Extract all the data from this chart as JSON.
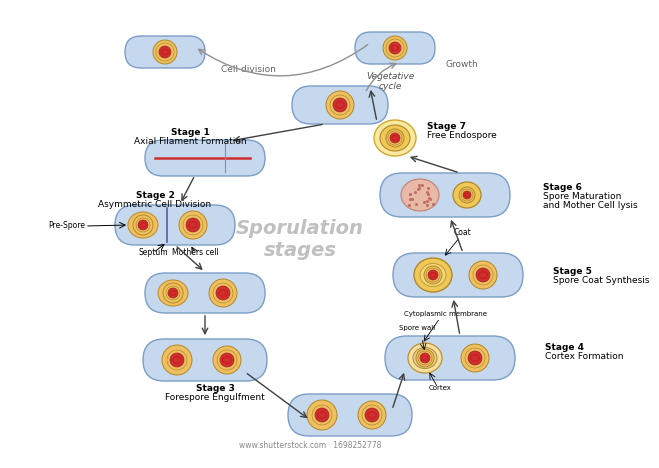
{
  "title": "Sporulation\nstages",
  "title_color": "#c0c0c0",
  "title_fontsize": 14,
  "background_color": "#ffffff",
  "cell_body_color": "#c5d8ee",
  "cell_border_color": "#7a9ec8",
  "nucleus_outer_color": "#f0c060",
  "nucleus_inner_color": "#cc3030",
  "filament_color": "#cc3030",
  "arrow_color": "#404040",
  "veg_arrow_color": "#909090",
  "veg_cycle_label": "Vegetative\ncycle",
  "growth_label": "Growth",
  "cell_division_label": "Cell division",
  "pre_spore_label": "Pre-Spore",
  "septum_label": "Septum",
  "mothers_cell_label": "Mothers cell",
  "coat_label": "Coat",
  "cytoplasmic_membrane_label": "Cytoplasmic membrane",
  "spore_wall_label": "Spore wall",
  "cortex_label": "Cortex",
  "watermark": "www.shutterstock.com · 1698252778",
  "stage_labels": [
    "Stage 1\nAxial Filament Formation",
    "Stage 2\nAsymmetric Cell Division",
    "Stage 3\nForespore Engulfment",
    "Stage 4\nCortex Formation",
    "Stage 5\nSpore Coat Synthesis",
    "Stage 6\nSpore Maturation\nand Mother Cell lysis",
    "Stage 7\nFree Endospore"
  ]
}
